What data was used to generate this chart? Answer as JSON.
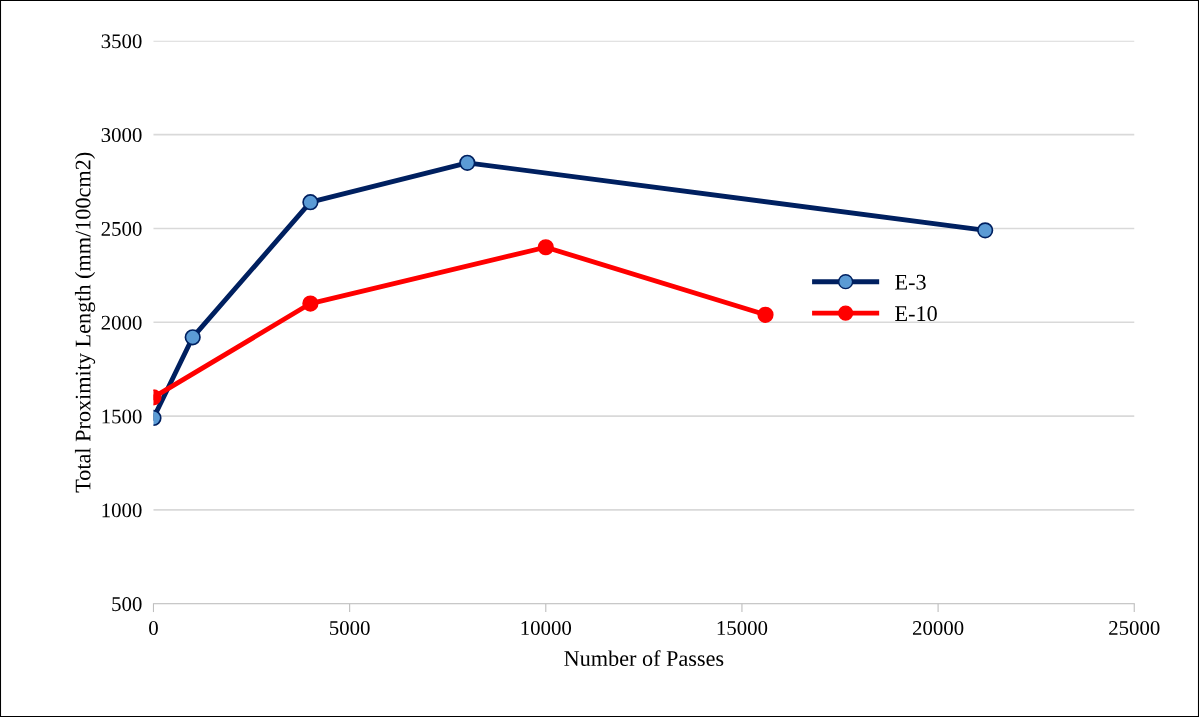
{
  "chart_data": {
    "type": "line",
    "xlabel": "Number of Passes",
    "ylabel": "Total Proximity Length (mm/100cm2)",
    "series": [
      {
        "name": "E-3",
        "color": "#002060",
        "colors": [
          "#5b9bd5",
          "#5b9bd5",
          "#5b9bd5",
          "#5b9bd5",
          "#5b9bd5"
        ],
        "x": [
          0,
          1000,
          4000,
          8000,
          21200
        ],
        "values": [
          1490,
          1920,
          2640,
          2850,
          2490
        ]
      },
      {
        "name": "E-10",
        "color": "#ff0000",
        "colors": [
          "#ff0000",
          "#ff0000",
          "#ff0000",
          "#ff0000"
        ],
        "x": [
          0,
          4000,
          10000,
          15600
        ],
        "values": [
          1600,
          2100,
          2400,
          2040
        ]
      }
    ],
    "xlim": [
      0,
      25000
    ],
    "xticks": [
      0,
      5000,
      10000,
      15000,
      20000,
      25000
    ],
    "ylim": [
      500,
      3500
    ],
    "yticks": [
      500,
      1000,
      1500,
      2000,
      2500,
      3000,
      3500
    ],
    "grid": "y",
    "legend": "right",
    "marker": "circle",
    "line_style": "solid"
  }
}
